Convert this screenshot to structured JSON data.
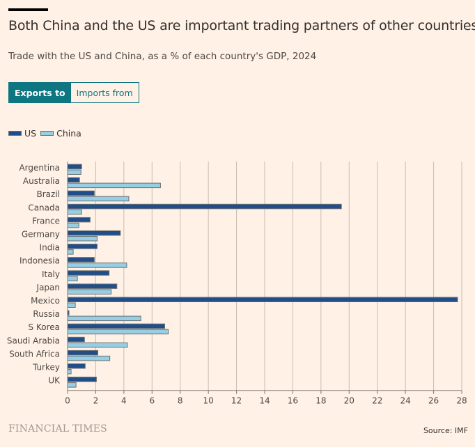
{
  "header": {
    "title": "Both China and the US are important trading partners of other countries",
    "subtitle": "Trade with the US and China, as a % of each country's GDP, 2024"
  },
  "toggle": {
    "options": [
      {
        "label": "Exports to",
        "active": true
      },
      {
        "label": "Imports from",
        "active": false
      }
    ]
  },
  "legend": {
    "items": [
      {
        "label": "US",
        "color": "#1f4e89"
      },
      {
        "label": "China",
        "color": "#96cfe3"
      }
    ]
  },
  "footer": {
    "brand": "FINANCIAL TIMES",
    "source": "Source: IMF"
  },
  "colors": {
    "us": "#1f4e89",
    "china": "#96cfe3",
    "bar_stroke": "#6b6e73",
    "grid": "#c7bcb3",
    "axis": "#807973",
    "accent": "#0d7680",
    "background": "#fff1e5"
  },
  "chart_data": {
    "type": "bar",
    "orientation": "horizontal",
    "title": "Both China and the US are important trading partners of other countries",
    "subtitle": "Trade with the US and China, as a % of each country's GDP, 2024",
    "xlabel": "",
    "ylabel": "",
    "xlim": [
      0,
      28
    ],
    "xticks": [
      0,
      2,
      4,
      6,
      8,
      10,
      12,
      14,
      16,
      18,
      20,
      22,
      24,
      26,
      28
    ],
    "grid": true,
    "legend_position": "top-left",
    "categories": [
      "Argentina",
      "Australia",
      "Brazil",
      "Canada",
      "France",
      "Germany",
      "India",
      "Indonesia",
      "Italy",
      "Japan",
      "Mexico",
      "Russia",
      "S Korea",
      "Saudi Arabia",
      "South Africa",
      "Turkey",
      "UK"
    ],
    "series": [
      {
        "name": "US",
        "values": [
          1.0,
          0.85,
          1.9,
          19.45,
          1.6,
          3.75,
          2.1,
          1.9,
          2.95,
          3.5,
          27.7,
          0.1,
          6.9,
          1.2,
          2.15,
          1.25,
          2.05
        ]
      },
      {
        "name": "China",
        "values": [
          0.95,
          6.6,
          4.35,
          1.0,
          0.8,
          2.1,
          0.4,
          4.2,
          0.7,
          3.1,
          0.55,
          5.2,
          7.15,
          4.25,
          3.0,
          0.25,
          0.6
        ]
      }
    ],
    "source": "IMF"
  }
}
